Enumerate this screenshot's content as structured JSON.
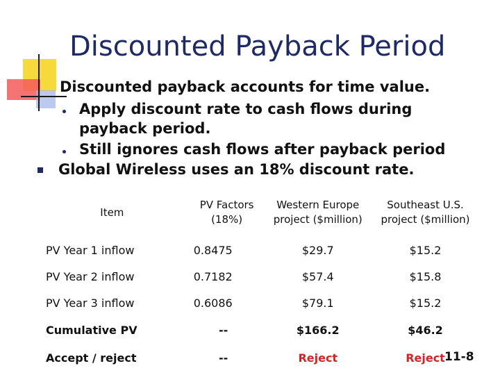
{
  "slide": {
    "title": "Discounted Payback Period",
    "bullets": {
      "b1": "Discounted payback accounts for time value.",
      "b2a": "Apply discount rate to cash flows during",
      "b2b": "payback period.",
      "b3": "Still ignores cash flows after payback period",
      "b4": "Global Wireless uses an 18% discount rate."
    },
    "slide_number": "11-8",
    "colors": {
      "title": "#1d2a66",
      "reject": "#d42424",
      "bullet": "#1d2a66"
    }
  },
  "table": {
    "headers": {
      "item": "Item",
      "factor_line1": "PV Factors",
      "factor_line2": "(18%)",
      "we": "Western Europe project ($million)",
      "se": "Southeast U.S. project ($million)"
    },
    "rows": [
      {
        "item": "PV Year 1 inflow",
        "factor": "0.8475",
        "we": "$29.7",
        "se": "$15.2"
      },
      {
        "item": "PV Year 2 inflow",
        "factor": "0.7182",
        "we": "$57.4",
        "se": "$15.8"
      },
      {
        "item": "PV Year 3 inflow",
        "factor": "0.6086",
        "we": "$79.1",
        "se": "$15.2"
      }
    ],
    "cumulative": {
      "item": "Cumulative PV",
      "factor": "--",
      "we": "$166.2",
      "se": "$46.2"
    },
    "decision": {
      "item": "Accept / reject",
      "factor": "--",
      "we": "Reject",
      "se": "Reject"
    }
  }
}
